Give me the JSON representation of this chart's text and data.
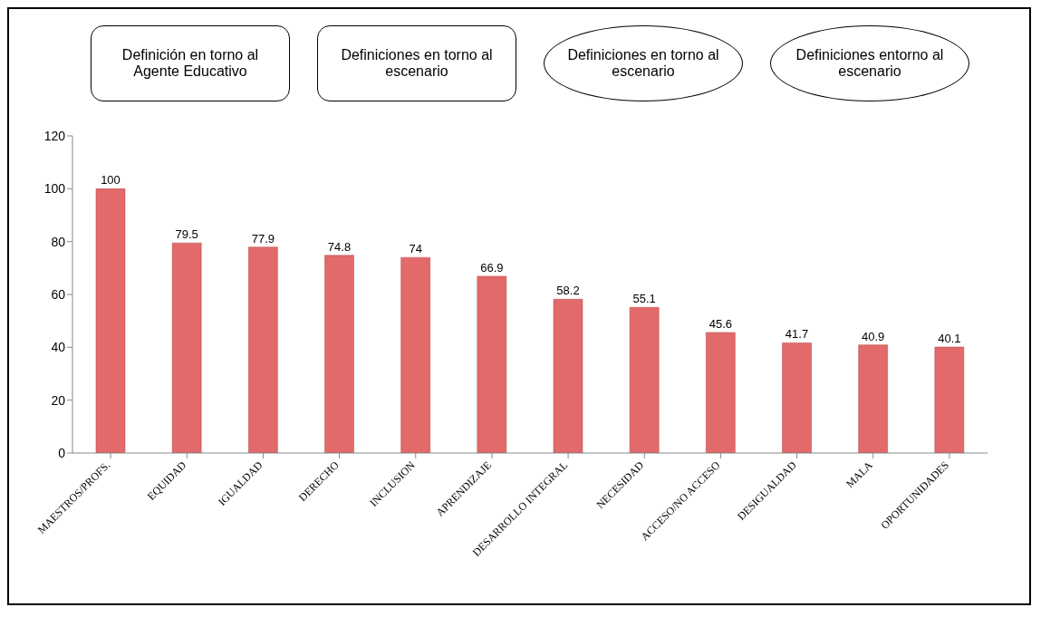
{
  "chart_data": {
    "type": "bar",
    "categories": [
      "MAESTROS/PROFS.",
      "EQUIDAD",
      "IGUALDAD",
      "DERECHO",
      "INCLUSION",
      "APRENDIZAJE",
      "DESARROLLO INTEGRAL",
      "NECESIDAD",
      "ACCESO/NO ACCESO",
      "DESIGUALDAD",
      "MALA",
      "OPORTUNIDADES"
    ],
    "values": [
      100,
      79.5,
      77.9,
      74.8,
      74,
      66.9,
      58.2,
      55.1,
      45.6,
      41.7,
      40.9,
      40.1
    ],
    "color": "#e36a6a",
    "ylim": [
      0,
      120
    ],
    "yticks": [
      0,
      20,
      40,
      60,
      80,
      100,
      120
    ],
    "data_labels": true,
    "grid": false,
    "annotations": [
      "Definición en torno al Agente Educativo",
      "Definiciones en torno al escenario",
      "Definiciones en torno al escenario",
      "Definiciones entorno al escenario"
    ]
  }
}
